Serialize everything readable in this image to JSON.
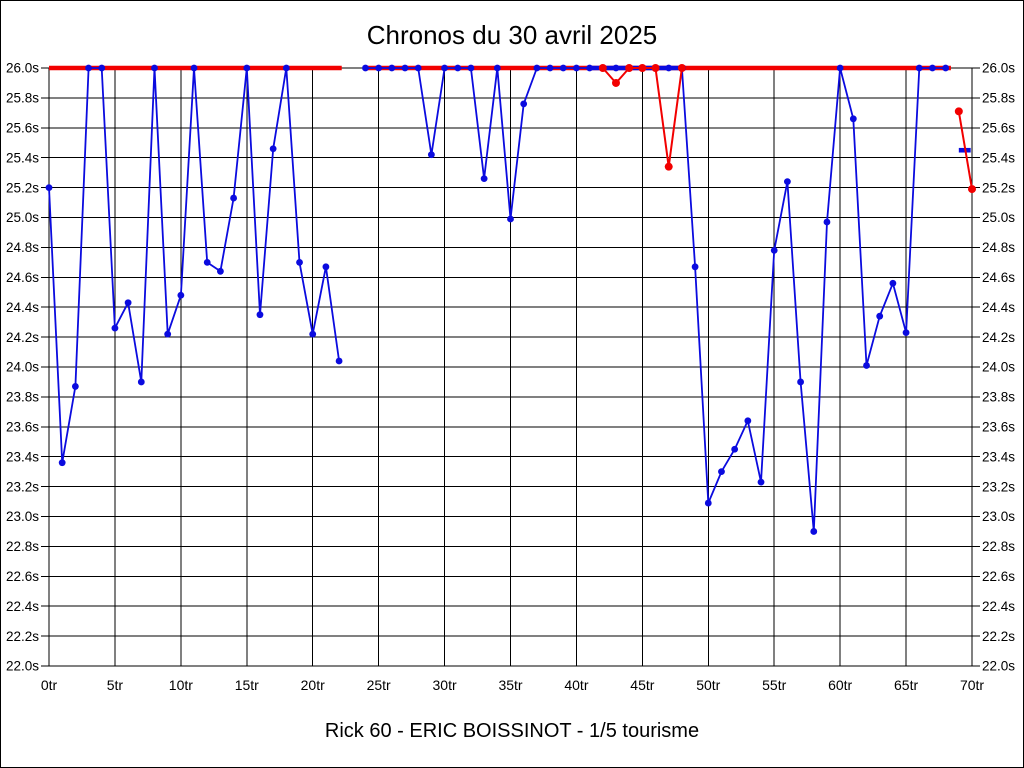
{
  "title": "Chronos du 30 avril 2025",
  "footer": "Rick 60 - ERIC BOISSINOT - 1/5 tourisme",
  "colors": {
    "blue_series": "#0b0bdf",
    "red_series": "#f20000",
    "grid": "#000000",
    "background": "#ffffff"
  },
  "chart_data": {
    "type": "line",
    "title": "Chronos du 30 avril 2025",
    "subtitle": "Rick 60 - ERIC BOISSINOT - 1/5 tourisme",
    "x_unit": "tr",
    "y_unit": "s",
    "xlim": [
      0,
      70
    ],
    "ylim": [
      22.0,
      26.0
    ],
    "grid": true,
    "legend": "none",
    "x_ticks": [
      {
        "lap": 0,
        "label": "0tr"
      },
      {
        "lap": 5,
        "label": "5tr"
      },
      {
        "lap": 10,
        "label": "10tr"
      },
      {
        "lap": 15,
        "label": "15tr"
      },
      {
        "lap": 20,
        "label": "20tr"
      },
      {
        "lap": 25,
        "label": "25tr"
      },
      {
        "lap": 30,
        "label": "30tr"
      },
      {
        "lap": 35,
        "label": "35tr"
      },
      {
        "lap": 40,
        "label": "40tr"
      },
      {
        "lap": 45,
        "label": "45tr"
      },
      {
        "lap": 50,
        "label": "50tr"
      },
      {
        "lap": 55,
        "label": "55tr"
      },
      {
        "lap": 60,
        "label": "60tr"
      },
      {
        "lap": 65,
        "label": "65tr"
      },
      {
        "lap": 70,
        "label": "70tr"
      }
    ],
    "y_ticks": [
      {
        "value": 26.0,
        "label": "26.0s"
      },
      {
        "value": 25.8,
        "label": "25.8s"
      },
      {
        "value": 25.6,
        "label": "25.6s"
      },
      {
        "value": 25.4,
        "label": "25.4s"
      },
      {
        "value": 25.2,
        "label": "25.2s"
      },
      {
        "value": 25.0,
        "label": "25.0s"
      },
      {
        "value": 24.8,
        "label": "24.8s"
      },
      {
        "value": 24.6,
        "label": "24.6s"
      },
      {
        "value": 24.4,
        "label": "24.4s"
      },
      {
        "value": 24.2,
        "label": "24.2s"
      },
      {
        "value": 24.0,
        "label": "24.0s"
      },
      {
        "value": 23.8,
        "label": "23.8s"
      },
      {
        "value": 23.6,
        "label": "23.6s"
      },
      {
        "value": 23.4,
        "label": "23.4s"
      },
      {
        "value": 23.2,
        "label": "23.2s"
      },
      {
        "value": 23.0,
        "label": "23.0s"
      },
      {
        "value": 22.8,
        "label": "22.8s"
      },
      {
        "value": 22.6,
        "label": "22.6s"
      },
      {
        "value": 22.4,
        "label": "22.4s"
      },
      {
        "value": 22.2,
        "label": "22.2s"
      },
      {
        "value": 22.0,
        "label": "22.0s"
      }
    ],
    "series": [
      {
        "name": "lap-times-blue",
        "color": "#0b0bdf",
        "line_width": 1.8,
        "dot_radius": 3.4,
        "x": [
          0,
          1,
          2,
          3,
          4,
          5,
          6,
          7,
          8,
          9,
          10,
          11,
          12,
          13,
          14,
          15,
          16,
          17,
          18,
          19,
          20,
          21,
          22,
          23,
          24,
          25,
          26,
          27,
          28,
          29,
          30,
          31,
          32,
          33,
          34,
          35,
          36,
          37,
          38,
          39,
          40,
          41,
          42,
          43,
          44,
          45,
          46,
          47,
          48,
          49,
          50,
          51,
          52,
          53,
          54,
          55,
          56,
          57,
          58,
          59,
          60,
          61,
          62,
          63,
          64,
          65,
          66,
          67,
          68,
          69,
          70
        ],
        "values": [
          25.2,
          23.36,
          23.87,
          26.0,
          26.0,
          24.26,
          24.43,
          23.9,
          26.0,
          24.22,
          24.48,
          26.0,
          24.7,
          24.64,
          25.13,
          26.0,
          24.35,
          25.46,
          26.0,
          24.7,
          24.22,
          24.67,
          24.04,
          null,
          26.0,
          26.0,
          26.0,
          26.0,
          26.0,
          25.42,
          26.0,
          26.0,
          26.0,
          25.26,
          26.0,
          24.99,
          25.76,
          26.0,
          26.0,
          26.0,
          26.0,
          26.0,
          26.0,
          26.0,
          26.0,
          26.0,
          26.0,
          26.0,
          26.0,
          24.67,
          23.09,
          23.3,
          23.45,
          23.64,
          23.23,
          24.78,
          25.24,
          23.9,
          22.9,
          24.97,
          26.0,
          25.66,
          24.01,
          24.34,
          24.56,
          24.23,
          26.0,
          26.0,
          26.0,
          null,
          null
        ]
      },
      {
        "name": "red-overlay-mid",
        "color": "#f20000",
        "line_width": 2,
        "dot_radius": 4,
        "x": [
          42,
          43,
          44,
          45,
          46,
          47,
          48
        ],
        "values": [
          26.0,
          25.9,
          26.0,
          26.0,
          26.0,
          25.34,
          26.0
        ]
      },
      {
        "name": "red-overlay-end",
        "color": "#f20000",
        "line_width": 2,
        "dot_radius": 4,
        "x": [
          69,
          70
        ],
        "values": [
          25.71,
          25.19
        ]
      }
    ],
    "cap_line": {
      "value": 26.0,
      "color": "#f20000",
      "width": 4.6,
      "segments": [
        {
          "from": 0,
          "to": 22.2
        },
        {
          "from": 24,
          "to": 68.4
        }
      ]
    },
    "blue_highlight": {
      "value": 26.0,
      "from": 41,
      "to": 48.3,
      "width": 4.6
    },
    "blue_dash": {
      "value": 25.45,
      "from": 69,
      "to": 69.9,
      "width": 4.6
    }
  }
}
